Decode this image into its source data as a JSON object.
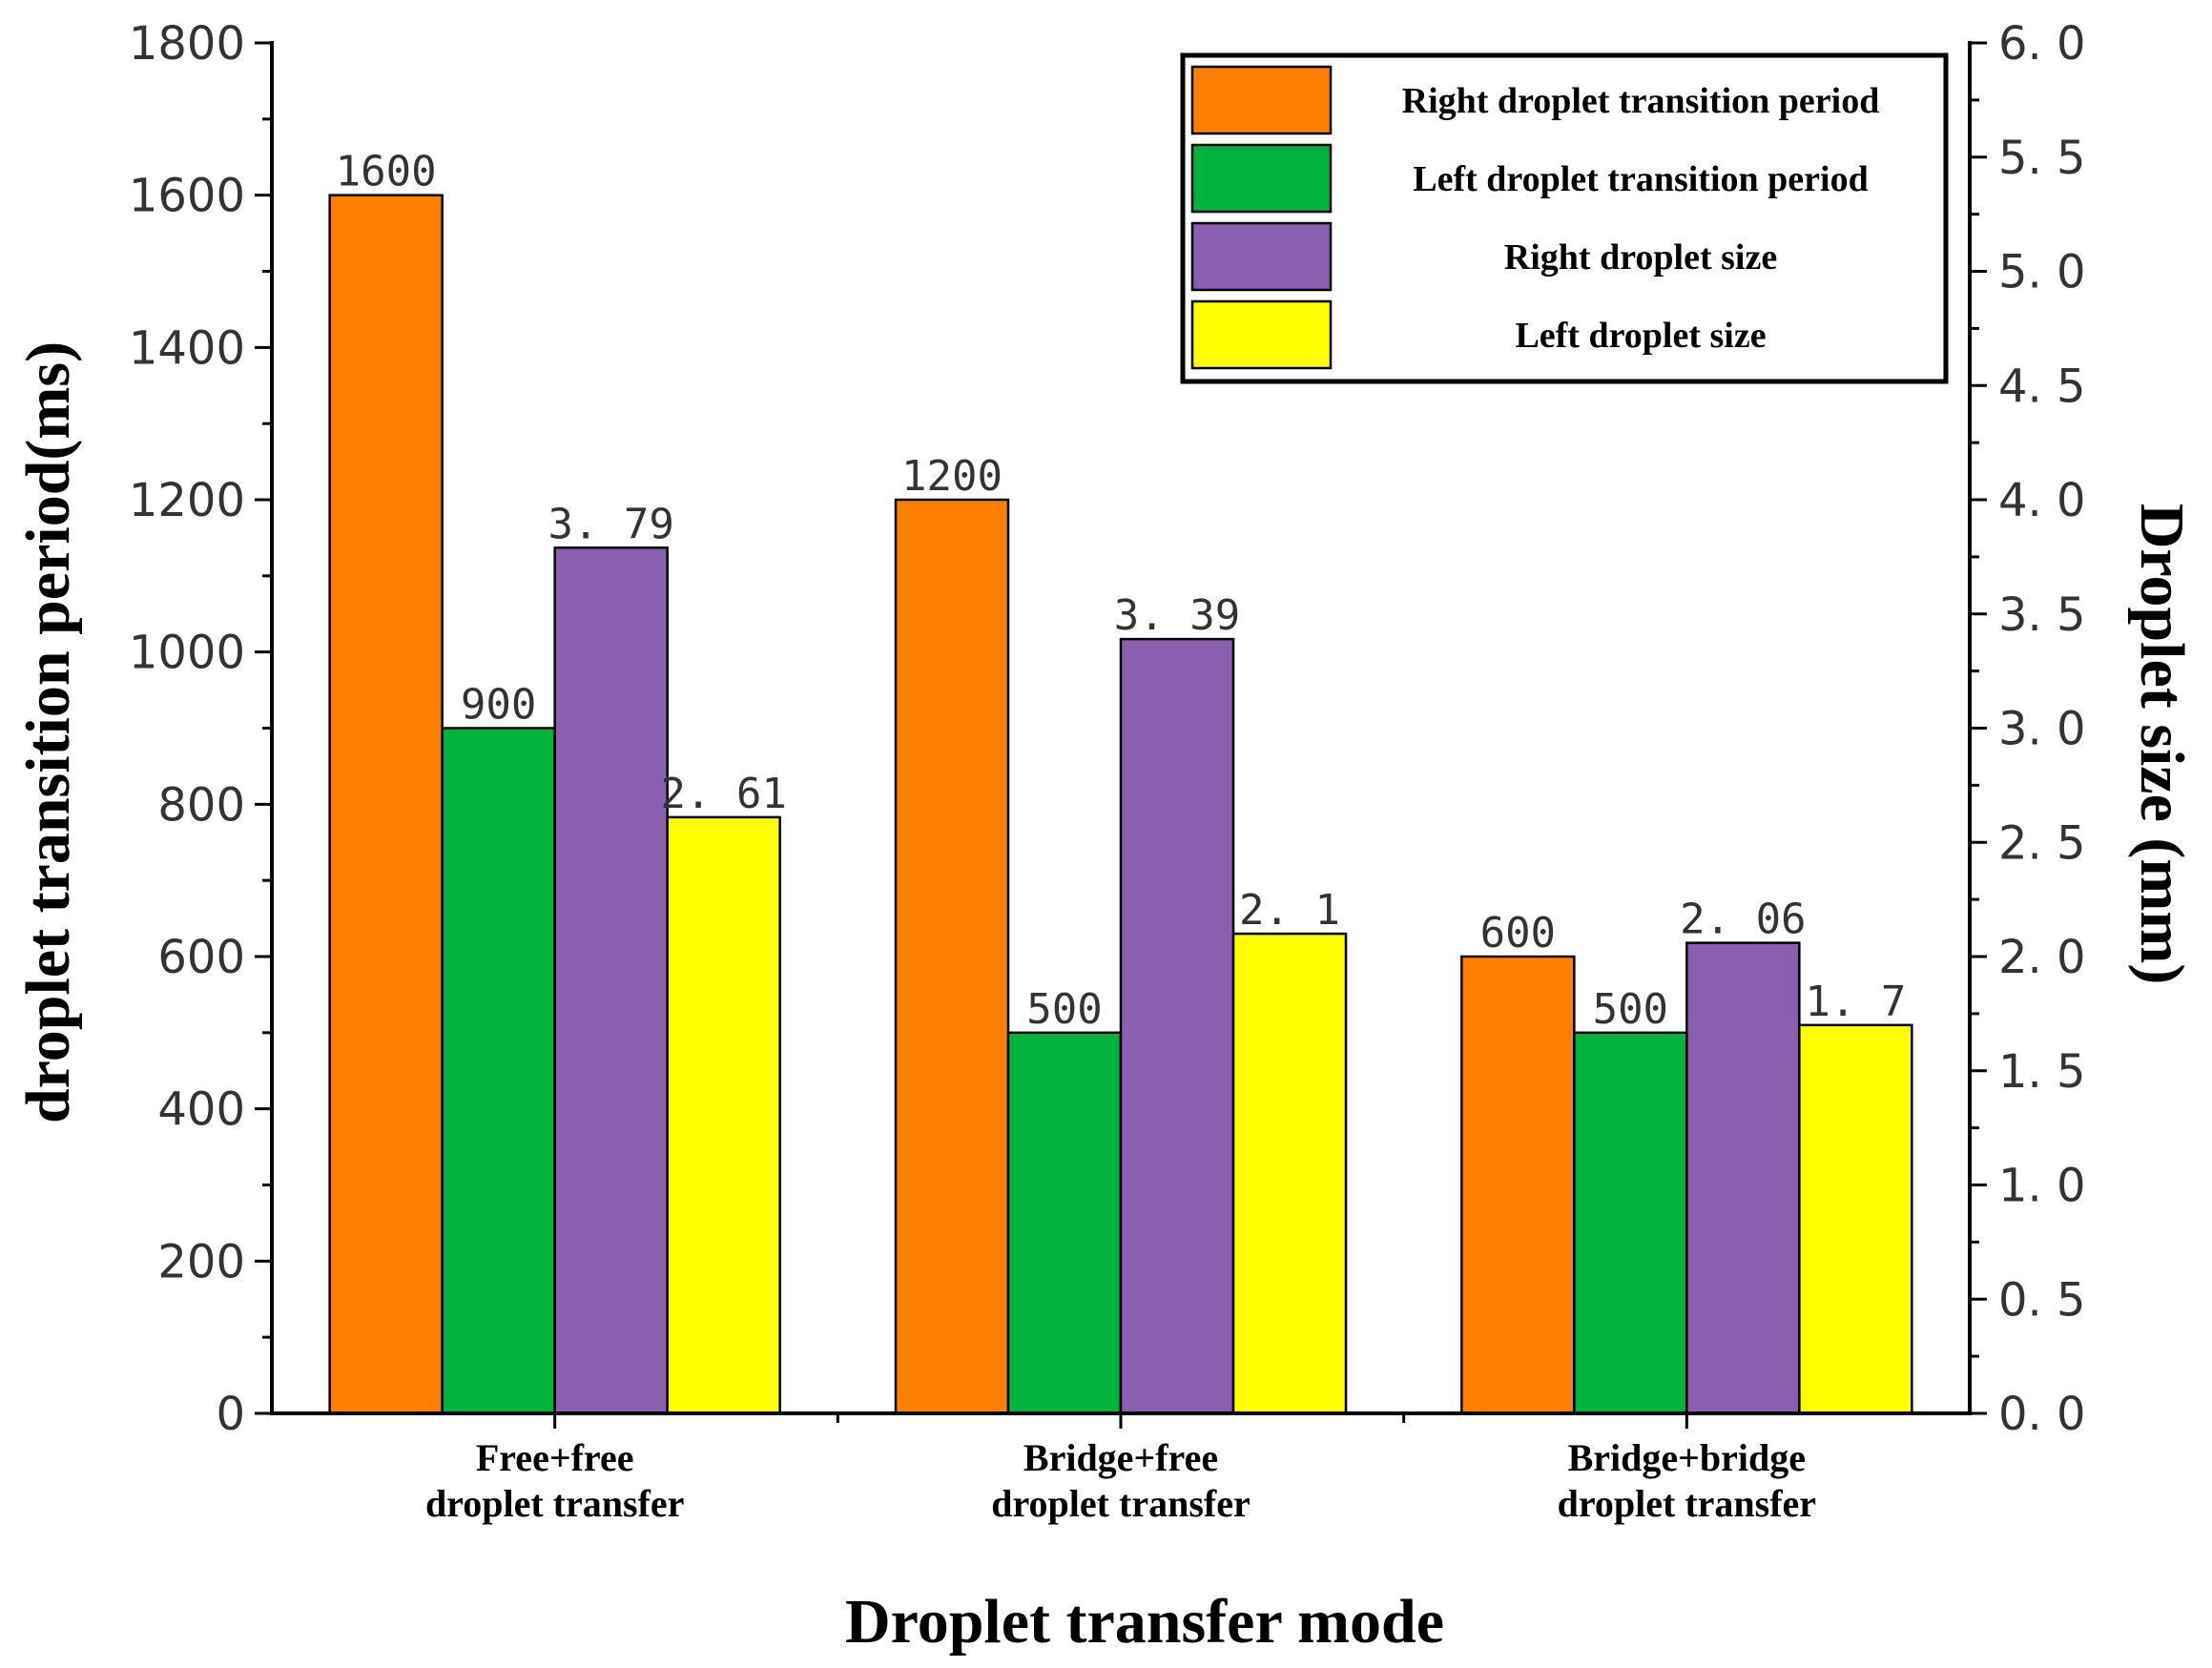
{
  "chart_data": {
    "type": "bar",
    "title": "",
    "xlabel": "Droplet transfer mode",
    "ylabel": "droplet transition period(ms)",
    "y2label": "Droplet size (mm)",
    "ylim": [
      0,
      1800
    ],
    "y2lim": [
      0,
      6.0
    ],
    "yticks": [
      "0",
      "200",
      "400",
      "600",
      "800",
      "1000",
      "1200",
      "1400",
      "1600",
      "1800"
    ],
    "y2ticks": [
      "0.0",
      "0.5",
      "1.0",
      "1.5",
      "2.0",
      "2.5",
      "3.0",
      "3.5",
      "4.0",
      "4.5",
      "5.0",
      "5.5",
      "6.0"
    ],
    "categories": [
      [
        "Free+free",
        "droplet transfer"
      ],
      [
        "Bridge+free",
        "droplet transfer"
      ],
      [
        "Bridge+bridge",
        "droplet transfer"
      ]
    ],
    "legend_position": "top-right",
    "series": [
      {
        "name": "Right droplet transition period",
        "axis": "left",
        "color": "#FF8000",
        "values": [
          1600,
          1200,
          600
        ],
        "labels": [
          "1600",
          "1200",
          "600"
        ]
      },
      {
        "name": "Left droplet transition period",
        "axis": "left",
        "color": "#00B33C",
        "values": [
          900,
          500,
          500
        ],
        "labels": [
          "900",
          "500",
          "500"
        ]
      },
      {
        "name": "Right droplet size",
        "axis": "right",
        "color": "#8B5FAF",
        "values": [
          3.79,
          3.39,
          2.06
        ],
        "labels": [
          "3. 79",
          "3. 39",
          "2. 06"
        ]
      },
      {
        "name": "Left droplet size",
        "axis": "right",
        "color": "#FFFF00",
        "values": [
          2.61,
          2.1,
          1.7
        ],
        "labels": [
          "2. 61",
          "2. 1",
          "1. 7"
        ]
      }
    ]
  }
}
